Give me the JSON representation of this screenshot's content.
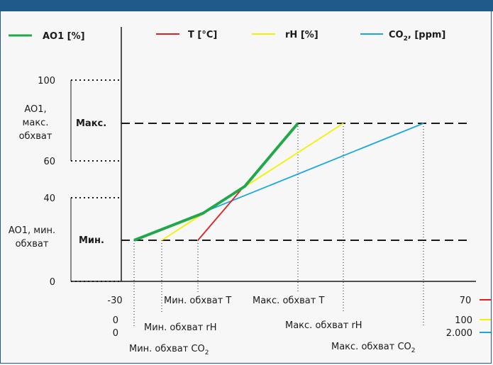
{
  "legend": {
    "ao1": "AO1 [%]",
    "t": "T [°C]",
    "rh": "rH [%]",
    "co2_main": "CO",
    "co2_sub": "2",
    "co2_unit": ", [ppm]"
  },
  "y_ticks": {
    "v100": "100",
    "v60": "60",
    "v40": "40",
    "v0": "0"
  },
  "y_labels": {
    "max_range_line1": "AO1,",
    "max_range_line2": "макс.",
    "max_range_line3": "обхват",
    "min_range_line1": "AO1, мин.",
    "min_range_line2": "обхват",
    "max": "Макс.",
    "min": "Мин."
  },
  "x_labels": {
    "t_min": "-30",
    "rh_min": "0",
    "co2_min": "0",
    "t_max": "70",
    "rh_max": "100",
    "co2_max": "2.000",
    "min_t": "Мин. обхват T",
    "max_t": "Макс. обхват T",
    "min_rh": "Мин. обхват rH",
    "max_rh": "Макс. обхват rH",
    "min_co2_main": "Мин. обхват CO",
    "min_co2_sub": "2",
    "max_co2_main": "Макс. обхват CO",
    "max_co2_sub": "2"
  },
  "colors": {
    "ao1": "#22a84a",
    "t": "#e02020",
    "rh": "#f5f000",
    "co2": "#1aa7e0",
    "frame": "#1f5a8a"
  }
}
